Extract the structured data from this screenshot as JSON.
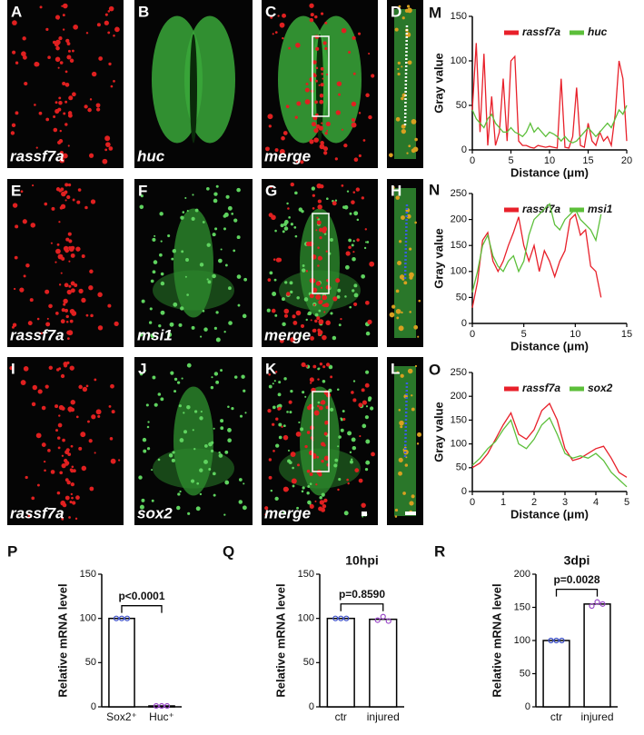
{
  "image_panels": [
    {
      "letter": "A",
      "label": "rassf7a"
    },
    {
      "letter": "B",
      "label": "huc"
    },
    {
      "letter": "C",
      "label": "merge"
    },
    {
      "letter": "D"
    },
    {
      "letter": "E",
      "label": "rassf7a"
    },
    {
      "letter": "F",
      "label": "msi1"
    },
    {
      "letter": "G",
      "label": "merge"
    },
    {
      "letter": "H"
    },
    {
      "letter": "I",
      "label": "rassf7a"
    },
    {
      "letter": "J",
      "label": "sox2"
    },
    {
      "letter": "K",
      "label": "merge"
    },
    {
      "letter": "L"
    }
  ],
  "chart_data": [
    {
      "type": "line",
      "panel": "M",
      "xlabel": "Distance (μm)",
      "ylabel": "Gray value",
      "x": [
        0,
        0.5,
        1,
        1.5,
        2,
        2.5,
        3,
        3.5,
        4,
        4.5,
        5,
        5.5,
        6,
        6.5,
        7,
        7.5,
        8,
        8.5,
        9,
        9.5,
        10,
        10.5,
        11,
        11.5,
        12,
        12.5,
        13,
        13.5,
        14,
        14.5,
        15,
        15.5,
        16,
        16.5,
        17,
        17.5,
        18,
        18.5,
        19,
        19.5,
        20
      ],
      "xlim": [
        0,
        20
      ],
      "xticks": [
        0,
        5,
        10,
        15,
        20
      ],
      "ylim": [
        0,
        150
      ],
      "yticks": [
        0,
        50,
        100,
        150
      ],
      "series": [
        {
          "name": "rassf7a",
          "color": "#e8202a",
          "values": [
            45,
            120,
            20,
            108,
            5,
            60,
            5,
            20,
            80,
            10,
            100,
            105,
            10,
            5,
            5,
            3,
            2,
            5,
            4,
            3,
            4,
            3,
            2,
            80,
            3,
            2,
            15,
            70,
            5,
            3,
            30,
            10,
            5,
            20,
            10,
            15,
            5,
            40,
            100,
            80,
            10
          ]
        },
        {
          "name": "huc",
          "color": "#5cbf3a",
          "values": [
            45,
            35,
            30,
            25,
            35,
            40,
            30,
            25,
            20,
            20,
            25,
            20,
            18,
            15,
            20,
            30,
            20,
            25,
            20,
            15,
            20,
            18,
            15,
            10,
            15,
            10,
            8,
            10,
            15,
            20,
            25,
            20,
            15,
            20,
            25,
            30,
            25,
            35,
            45,
            40,
            50
          ]
        }
      ]
    },
    {
      "type": "line",
      "panel": "N",
      "xlabel": "Distance (μm)",
      "ylabel": "Gray value",
      "x": [
        0,
        0.5,
        1,
        1.5,
        2,
        2.5,
        3,
        3.5,
        4,
        4.5,
        5,
        5.5,
        6,
        6.5,
        7,
        7.5,
        8,
        8.5,
        9,
        9.5,
        10,
        10.5,
        11,
        11.5,
        12,
        12.5
      ],
      "xlim": [
        0,
        15
      ],
      "xticks": [
        0,
        5,
        10,
        15
      ],
      "ylim": [
        0,
        250
      ],
      "yticks": [
        0,
        50,
        100,
        150,
        200,
        250
      ],
      "series": [
        {
          "name": "rassf7a",
          "color": "#e8202a",
          "values": [
            30,
            80,
            160,
            175,
            120,
            100,
            120,
            150,
            175,
            205,
            150,
            120,
            150,
            100,
            140,
            120,
            90,
            120,
            140,
            200,
            210,
            170,
            180,
            110,
            100,
            50
          ]
        },
        {
          "name": "msi1",
          "color": "#5cbf3a",
          "values": [
            60,
            100,
            150,
            170,
            130,
            110,
            100,
            120,
            130,
            100,
            120,
            170,
            200,
            210,
            220,
            230,
            190,
            180,
            200,
            210,
            220,
            200,
            190,
            180,
            160,
            210
          ]
        }
      ]
    },
    {
      "type": "line",
      "panel": "O",
      "xlabel": "Distance (μm)",
      "ylabel": "Gray value",
      "x": [
        0,
        0.25,
        0.5,
        0.75,
        1,
        1.25,
        1.5,
        1.75,
        2,
        2.25,
        2.5,
        2.75,
        3,
        3.25,
        3.5,
        3.75,
        4,
        4.25,
        4.5,
        4.75,
        5
      ],
      "xlim": [
        0,
        5
      ],
      "xticks": [
        0,
        1,
        2,
        3,
        4,
        5
      ],
      "ylim": [
        0,
        250
      ],
      "yticks": [
        0,
        50,
        100,
        150,
        200,
        250
      ],
      "series": [
        {
          "name": "rassf7a",
          "color": "#e8202a",
          "values": [
            50,
            60,
            80,
            110,
            140,
            165,
            120,
            110,
            130,
            170,
            185,
            150,
            90,
            65,
            70,
            80,
            90,
            95,
            70,
            40,
            30
          ]
        },
        {
          "name": "sox2",
          "color": "#5cbf3a",
          "values": [
            55,
            70,
            90,
            105,
            130,
            150,
            100,
            90,
            110,
            140,
            155,
            120,
            80,
            70,
            75,
            70,
            80,
            65,
            40,
            25,
            10
          ]
        }
      ]
    },
    {
      "type": "bar",
      "panel": "P",
      "ylabel": "Relative mRNA level",
      "annotation": "p<0.0001",
      "categories": [
        "Sox2⁺",
        "Huc⁺"
      ],
      "values": [
        100,
        1
      ],
      "replicates": [
        [
          100,
          100,
          100
        ],
        [
          1,
          1,
          1
        ]
      ],
      "point_colors": [
        "#3b4fc8",
        "#9a48c8"
      ],
      "ylim": [
        0,
        150
      ],
      "yticks": [
        0,
        50,
        100,
        150
      ]
    },
    {
      "type": "bar",
      "panel": "Q",
      "title": "10hpi",
      "ylabel": "Relative  mRNA level",
      "annotation": "p=0.8590",
      "categories": [
        "ctr",
        "injured"
      ],
      "values": [
        100,
        99
      ],
      "replicates": [
        [
          100,
          100,
          100
        ],
        [
          98,
          102,
          97
        ]
      ],
      "point_colors": [
        "#3b4fc8",
        "#9a48c8"
      ],
      "ylim": [
        0,
        150
      ],
      "yticks": [
        0,
        50,
        100,
        150
      ]
    },
    {
      "type": "bar",
      "panel": "R",
      "title": "3dpi",
      "ylabel": "Relative mRNA level",
      "annotation": "p=0.0028",
      "categories": [
        "ctr",
        "injured"
      ],
      "values": [
        100,
        155
      ],
      "replicates": [
        [
          100,
          100,
          100
        ],
        [
          152,
          158,
          155
        ]
      ],
      "point_colors": [
        "#3b4fc8",
        "#9a48c8"
      ],
      "ylim": [
        0,
        200
      ],
      "yticks": [
        0,
        50,
        100,
        150,
        200
      ]
    }
  ]
}
